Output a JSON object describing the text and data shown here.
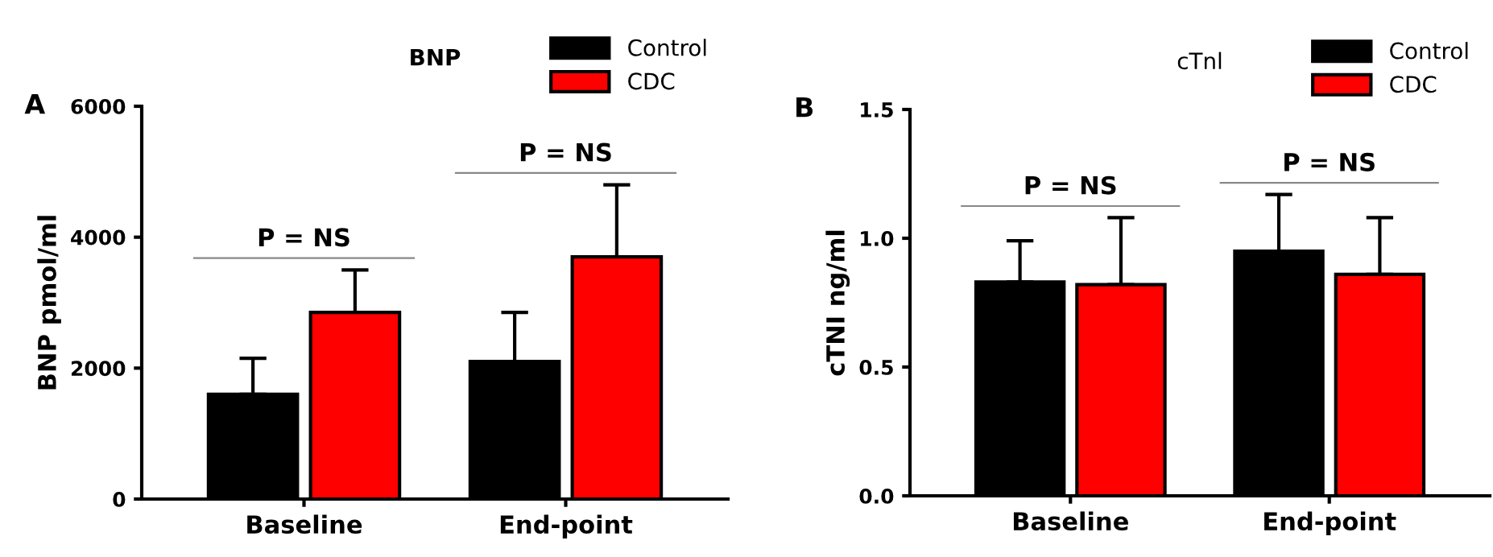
{
  "chart_data": [
    {
      "type": "bar",
      "title": "BNP",
      "ylabel": "BNP pmol/ml",
      "categories": [
        "Baseline",
        "End-point"
      ],
      "series": [
        {
          "name": "Control",
          "color": "#000000",
          "values": [
            1600,
            2100
          ],
          "errors": [
            [
              1600,
              2150
            ],
            [
              2100,
              2850
            ]
          ]
        },
        {
          "name": "CDC",
          "color": "#ff0000",
          "values": [
            2850,
            3700
          ],
          "errors": [
            [
              2850,
              3500
            ],
            [
              3700,
              4800
            ]
          ]
        }
      ],
      "ylim": [
        0,
        6000
      ],
      "yticks": [
        0,
        2000,
        4000,
        6000
      ],
      "grid": false,
      "legend": "top right",
      "annotations": [
        "A",
        "P = NS",
        "P = NS"
      ]
    },
    {
      "type": "bar",
      "title": "cTnl",
      "ylabel": "cTNI ng/ml",
      "categories": [
        "Baseline",
        "End-point"
      ],
      "series": [
        {
          "name": "Control",
          "color": "#000000",
          "values": [
            0.83,
            0.95
          ],
          "errors": [
            [
              0.83,
              0.99
            ],
            [
              0.95,
              1.17
            ]
          ]
        },
        {
          "name": "CDC",
          "color": "#ff0000",
          "values": [
            0.82,
            0.86
          ],
          "errors": [
            [
              0.82,
              1.08
            ],
            [
              0.86,
              1.08
            ]
          ]
        }
      ],
      "ylim": [
        0,
        1.5
      ],
      "yticks": [
        {
          "value": 0,
          "label": "0.0"
        },
        0.5,
        {
          "value": 1,
          "label": "1.0"
        },
        1.5
      ],
      "grid": false,
      "legend": "top right",
      "annotations": [
        "B",
        "P = NS",
        "P = NS"
      ]
    }
  ]
}
